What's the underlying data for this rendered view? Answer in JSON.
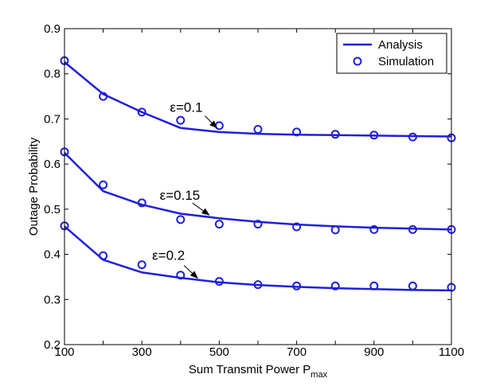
{
  "chart_data": {
    "type": "line",
    "xlabel": "Sum Transmit Power",
    "xlabel_sub": "max",
    "xlabel_var": "P",
    "ylabel": "Outage Probability",
    "xlim": [
      100,
      1100
    ],
    "ylim": [
      0.2,
      0.9
    ],
    "xticks": [
      100,
      300,
      500,
      700,
      900,
      1100
    ],
    "yticks": [
      0.2,
      0.3,
      0.4,
      0.5,
      0.6,
      0.7,
      0.8,
      0.9
    ],
    "grid": false,
    "legend": {
      "placement": "top-right",
      "entries": [
        "Analysis",
        "Simulation"
      ]
    },
    "colors": {
      "line": "#1f1fdb",
      "marker": "#1f1fdb",
      "axes": "#000000"
    },
    "x": [
      100,
      200,
      300,
      400,
      500,
      600,
      700,
      800,
      900,
      1000,
      1100
    ],
    "series": [
      {
        "name": "Analysis",
        "label": "ε=0.1",
        "values": [
          0.826,
          0.755,
          0.715,
          0.68,
          0.671,
          0.667,
          0.665,
          0.664,
          0.663,
          0.662,
          0.661
        ]
      },
      {
        "name": "Simulation",
        "label": "ε=0.1",
        "values": [
          0.829,
          0.75,
          0.715,
          0.697,
          0.685,
          0.677,
          0.671,
          0.666,
          0.664,
          0.66,
          0.658
        ]
      },
      {
        "name": "Analysis",
        "label": "ε=0.15",
        "values": [
          0.625,
          0.54,
          0.51,
          0.49,
          0.48,
          0.472,
          0.466,
          0.462,
          0.459,
          0.457,
          0.455
        ]
      },
      {
        "name": "Simulation",
        "label": "ε=0.15",
        "values": [
          0.627,
          0.554,
          0.514,
          0.477,
          0.467,
          0.467,
          0.461,
          0.454,
          0.455,
          0.455,
          0.455
        ]
      },
      {
        "name": "Analysis",
        "label": "ε=0.2",
        "values": [
          0.462,
          0.388,
          0.36,
          0.348,
          0.338,
          0.332,
          0.328,
          0.325,
          0.323,
          0.321,
          0.32
        ]
      },
      {
        "name": "Simulation",
        "label": "ε=0.2",
        "values": [
          0.463,
          0.397,
          0.377,
          0.354,
          0.34,
          0.333,
          0.33,
          0.33,
          0.33,
          0.33,
          0.327
        ]
      }
    ],
    "annotations": [
      {
        "text": "ε=0.1",
        "target_x": 500,
        "target_y": 0.675
      },
      {
        "text": "ε=0.15",
        "target_x": 480,
        "target_y": 0.482
      },
      {
        "text": "ε=0.2",
        "target_x": 450,
        "target_y": 0.342
      }
    ]
  }
}
